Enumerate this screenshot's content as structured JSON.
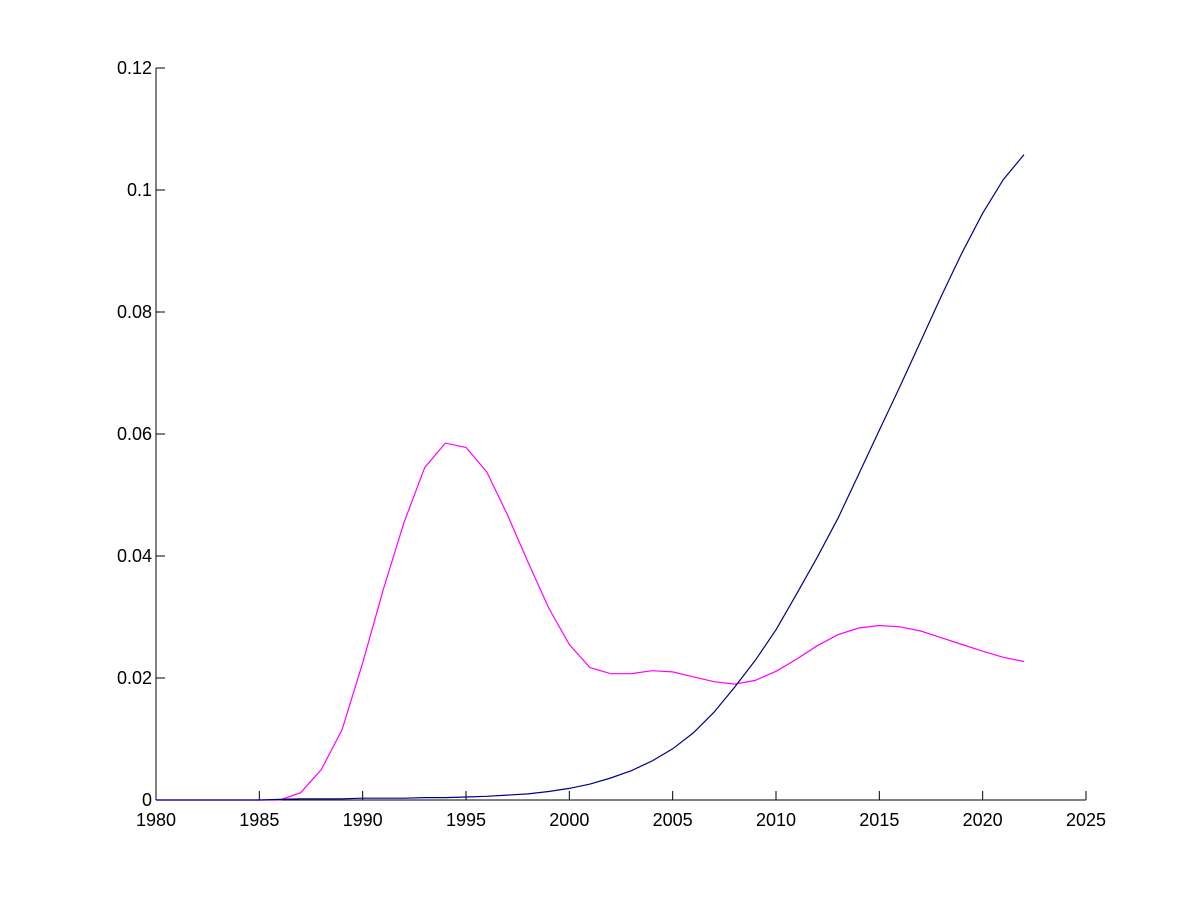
{
  "chart_data": {
    "type": "line",
    "title": "",
    "xlabel": "",
    "ylabel": "",
    "xlim": [
      1980,
      2025
    ],
    "ylim": [
      0,
      0.12
    ],
    "xticks": [
      1980,
      1985,
      1990,
      1995,
      2000,
      2005,
      2010,
      2015,
      2020,
      2025
    ],
    "yticks": [
      0,
      0.02,
      0.04,
      0.06,
      0.08,
      0.1,
      0.12
    ],
    "xtick_labels": [
      "1980",
      "1985",
      "1990",
      "1995",
      "2000",
      "2005",
      "2010",
      "2015",
      "2020",
      "2025"
    ],
    "ytick_labels": [
      "0",
      "0.02",
      "0.04",
      "0.06",
      "0.08",
      "0.1",
      "0.12"
    ],
    "grid": false,
    "legend": "none",
    "series": [
      {
        "color": "#FF00FF",
        "x": [
          1980,
          1981,
          1982,
          1983,
          1984,
          1985,
          1986,
          1987,
          1988,
          1989,
          1990,
          1991,
          1992,
          1993,
          1994,
          1995,
          1996,
          1997,
          1998,
          1999,
          2000,
          2001,
          2002,
          2003,
          2004,
          2005,
          2006,
          2007,
          2008,
          2009,
          2010,
          2011,
          2012,
          2013,
          2014,
          2015,
          2016,
          2017,
          2018,
          2019,
          2020,
          2021,
          2022
        ],
        "values": [
          0,
          0,
          0,
          0,
          0,
          0,
          0,
          0.0012,
          0.005,
          0.0115,
          0.0225,
          0.0345,
          0.0455,
          0.0545,
          0.0585,
          0.0578,
          0.0538,
          0.0468,
          0.039,
          0.0315,
          0.0255,
          0.0217,
          0.0207,
          0.0207,
          0.0212,
          0.021,
          0.0202,
          0.0194,
          0.019,
          0.0196,
          0.0211,
          0.0231,
          0.0253,
          0.0271,
          0.0282,
          0.0286,
          0.0284,
          0.0277,
          0.0266,
          0.0255,
          0.0244,
          0.0234,
          0.0227
        ]
      },
      {
        "color": "#00008B",
        "x": [
          1980,
          1981,
          1982,
          1983,
          1984,
          1985,
          1986,
          1987,
          1988,
          1989,
          1990,
          1991,
          1992,
          1993,
          1994,
          1995,
          1996,
          1997,
          1998,
          1999,
          2000,
          2001,
          2002,
          2003,
          2004,
          2005,
          2006,
          2007,
          2008,
          2009,
          2010,
          2011,
          2012,
          2013,
          2014,
          2015,
          2016,
          2017,
          2018,
          2019,
          2020,
          2021,
          2022
        ],
        "values": [
          0,
          0,
          0,
          0,
          0,
          0,
          0.0001,
          0.0002,
          0.0002,
          0.0002,
          0.0003,
          0.0003,
          0.0003,
          0.0004,
          0.0004,
          0.0005,
          0.0006,
          0.0008,
          0.001,
          0.0014,
          0.0019,
          0.0026,
          0.0036,
          0.0048,
          0.0064,
          0.0084,
          0.011,
          0.0144,
          0.0185,
          0.0229,
          0.0279,
          0.0338,
          0.0398,
          0.0462,
          0.0534,
          0.0606,
          0.0678,
          0.0752,
          0.0826,
          0.0897,
          0.0962,
          0.1017,
          0.1058
        ]
      }
    ]
  }
}
